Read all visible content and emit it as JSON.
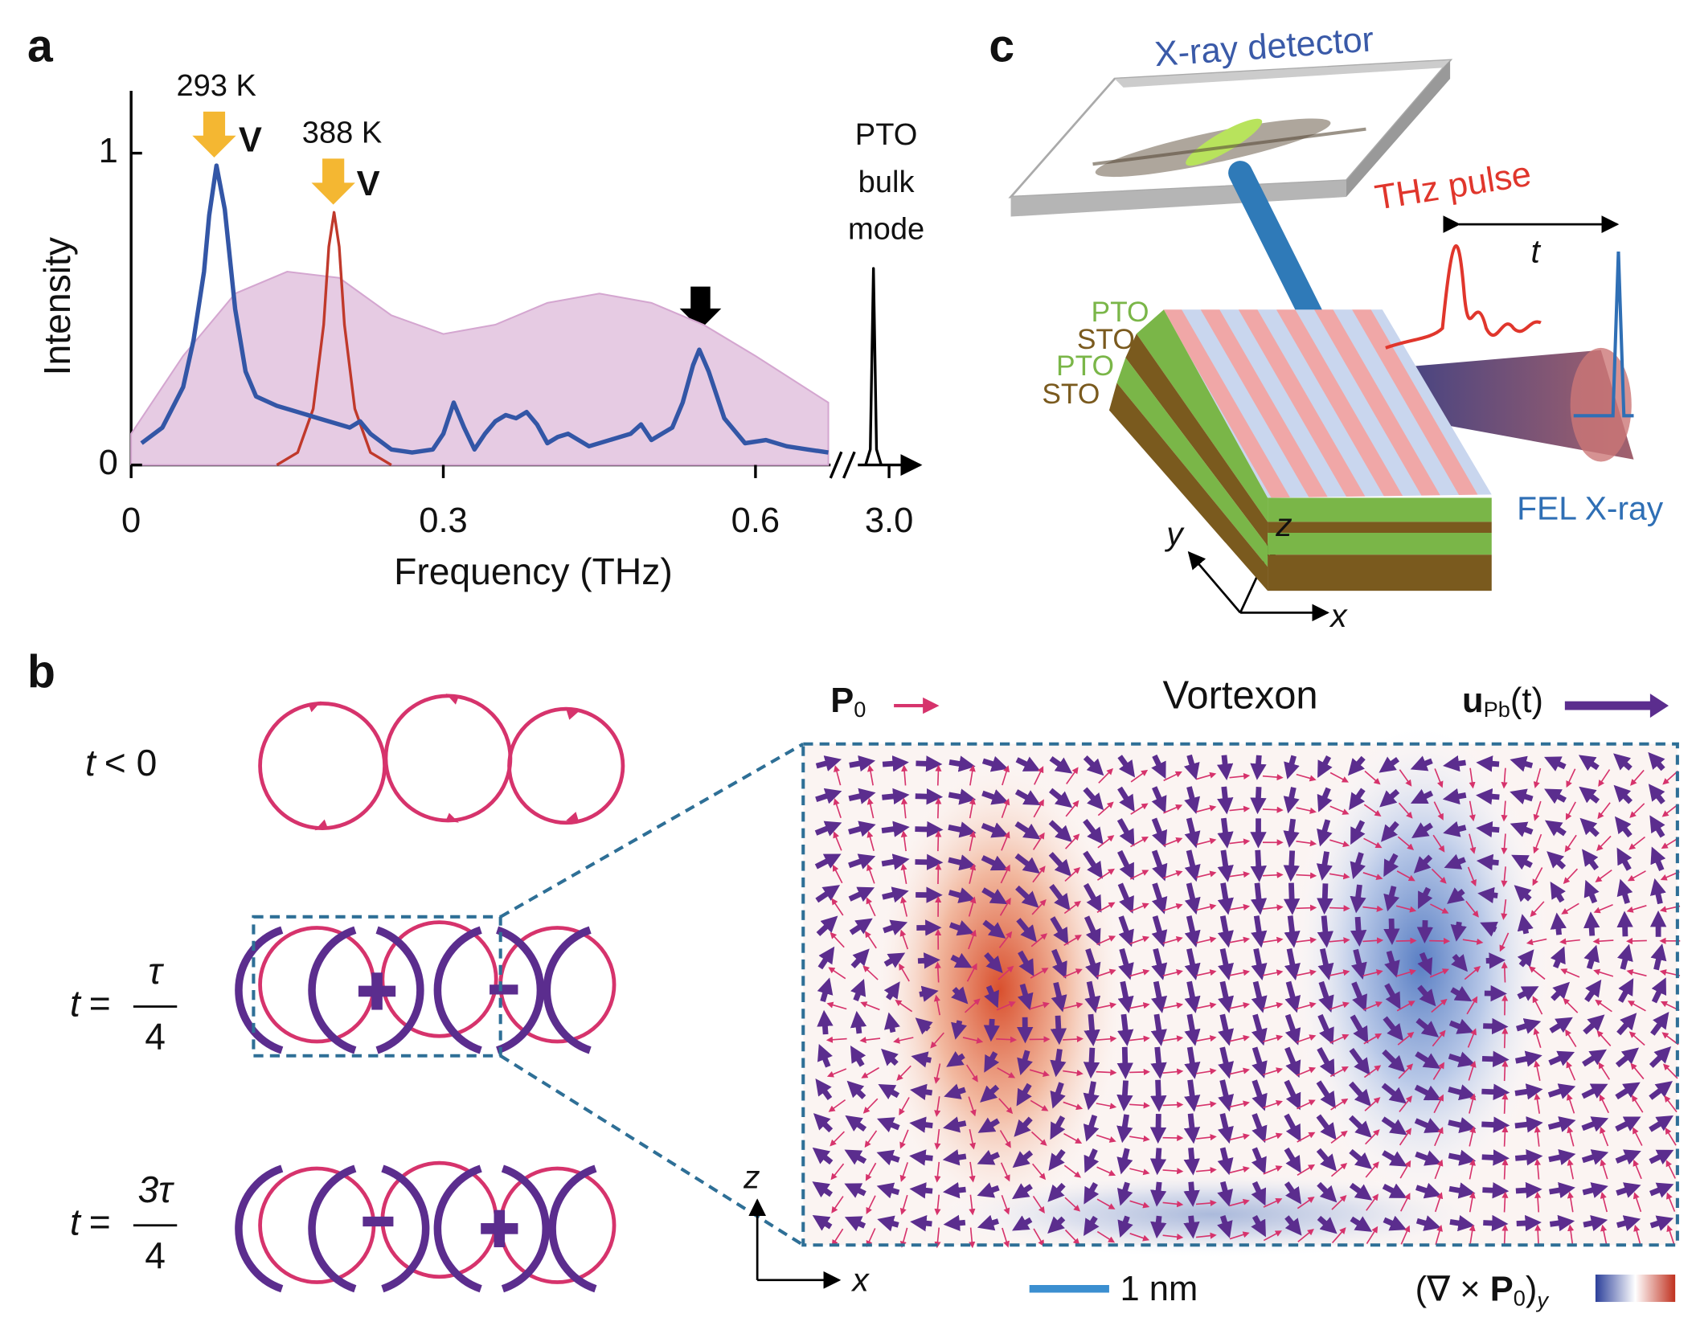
{
  "panel_labels": [
    "a",
    "b",
    "c"
  ],
  "chart_data": {
    "type": "line",
    "y_label": "Intensity",
    "x_label": "Frequency (THz)",
    "xlim": [
      0,
      0.67
    ],
    "xlim_after_break": [
      2.96,
      3.03
    ],
    "ylim": [
      0,
      1.2
    ],
    "xticks": [
      0,
      0.3,
      0.6,
      {
        "value": 3,
        "label": "3.0"
      }
    ],
    "yticks": [
      0,
      1
    ],
    "grid": false,
    "annotations": [
      "V",
      "V"
    ],
    "series": [
      {
        "name": "293 K",
        "color": "#3356a6",
        "x": [
          0.01,
          0.03,
          0.05,
          0.06,
          0.07,
          0.075,
          0.082,
          0.09,
          0.1,
          0.11,
          0.12,
          0.14,
          0.16,
          0.18,
          0.2,
          0.21,
          0.22,
          0.23,
          0.25,
          0.27,
          0.29,
          0.3,
          0.31,
          0.32,
          0.33,
          0.34,
          0.35,
          0.36,
          0.37,
          0.38,
          0.39,
          0.4,
          0.41,
          0.42,
          0.44,
          0.46,
          0.48,
          0.49,
          0.5,
          0.51,
          0.52,
          0.53,
          0.54,
          0.546,
          0.555,
          0.57,
          0.59,
          0.61,
          0.63,
          0.65,
          0.67
        ],
        "values": [
          0.07,
          0.12,
          0.25,
          0.4,
          0.62,
          0.8,
          0.96,
          0.82,
          0.5,
          0.3,
          0.22,
          0.19,
          0.17,
          0.15,
          0.13,
          0.12,
          0.14,
          0.1,
          0.05,
          0.04,
          0.05,
          0.1,
          0.2,
          0.12,
          0.05,
          0.1,
          0.14,
          0.16,
          0.15,
          0.17,
          0.13,
          0.07,
          0.09,
          0.1,
          0.06,
          0.08,
          0.1,
          0.13,
          0.08,
          0.1,
          0.12,
          0.2,
          0.32,
          0.37,
          0.3,
          0.15,
          0.07,
          0.08,
          0.06,
          0.05,
          0.04
        ]
      },
      {
        "name": "388 K",
        "color": "#c0392b",
        "x": [
          0.14,
          0.16,
          0.175,
          0.185,
          0.19,
          0.195,
          0.2,
          0.205,
          0.215,
          0.23,
          0.25
        ],
        "values": [
          0,
          0.04,
          0.18,
          0.45,
          0.7,
          0.81,
          0.7,
          0.45,
          0.18,
          0.04,
          0
        ]
      },
      {
        "color": "#e6cbe3",
        "fill": true,
        "x": [
          0,
          0.05,
          0.1,
          0.15,
          0.2,
          0.25,
          0.3,
          0.35,
          0.4,
          0.45,
          0.5,
          0.55,
          0.6,
          0.67
        ],
        "values": [
          0.1,
          0.35,
          0.55,
          0.62,
          0.6,
          0.48,
          0.42,
          0.45,
          0.52,
          0.55,
          0.52,
          0.45,
          0.35,
          0.2
        ]
      },
      {
        "color": "#000000",
        "label_lines": [
          "PTO",
          "bulk",
          "mode"
        ],
        "x": [
          2.97,
          2.976,
          2.98,
          2.984,
          2.99
        ],
        "values": [
          0,
          0.05,
          0.63,
          0.05,
          0
        ]
      }
    ]
  },
  "panel_b": {
    "time_labels": [
      {
        "variable": "t",
        "relation": "< 0"
      },
      {
        "variable": "t",
        "relation": "=",
        "numerator": "τ",
        "denominator": "4"
      },
      {
        "variable": "t",
        "relation": "=",
        "numerator": "3τ",
        "denominator": "4"
      }
    ],
    "title": "Vortexon",
    "legend": [
      {
        "symbol": "P",
        "subscript": "0"
      },
      {
        "symbol": "u",
        "subscript": "Pb",
        "suffix": "(t)"
      }
    ],
    "scale_bar": "1 nm",
    "colorbar_label": [
      "(∇ × ",
      "P",
      "0",
      ")",
      "y"
    ],
    "axes": [
      "z",
      "x"
    ]
  },
  "panel_c": {
    "detector": "X-ray detector",
    "pulse": "THz pulse",
    "delay": "t",
    "layers": [
      "PTO",
      "STO",
      "PTO",
      "STO"
    ],
    "beam": "FEL X-ray",
    "axes": [
      "x",
      "y",
      "z"
    ]
  }
}
